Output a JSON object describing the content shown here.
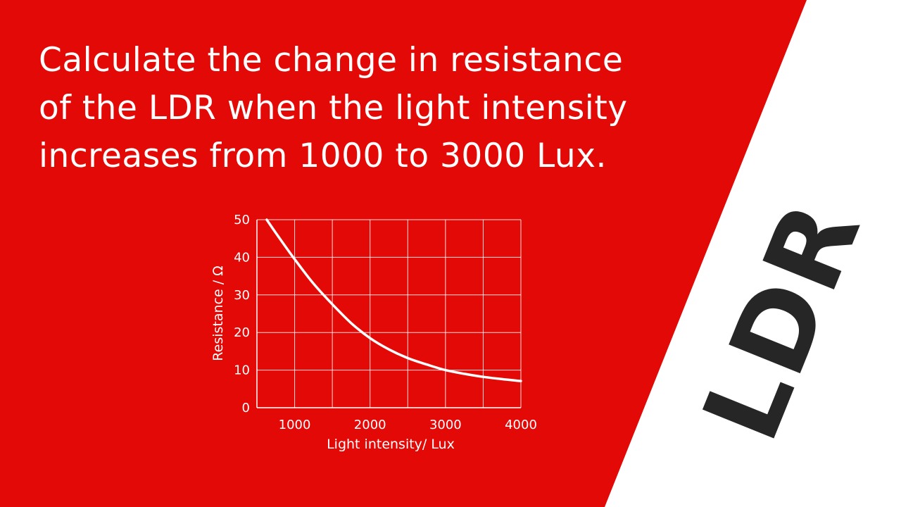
{
  "question": {
    "lines": [
      "Calculate the change in resistance",
      "of the LDR when the light intensity",
      "increases from 1000 to 3000 Lux."
    ]
  },
  "side_title": "LDR",
  "colors": {
    "background_red": "#e30907",
    "background_white": "#ffffff",
    "title_dark": "#262626",
    "chart_lines": "#ffffff"
  },
  "chart_data": {
    "type": "line",
    "title": "",
    "xlabel": "Light intensity/ Lux",
    "ylabel": "Resistance / Ω",
    "xlim": [
      500,
      4000
    ],
    "ylim": [
      0,
      50
    ],
    "x_ticks": [
      1000,
      2000,
      3000,
      4000
    ],
    "y_ticks": [
      0,
      10,
      20,
      30,
      40,
      50
    ],
    "grid": true,
    "legend": "none",
    "series": [
      {
        "values": [
          {
            "x": 630,
            "y": 50
          },
          {
            "x": 750,
            "y": 46.5
          },
          {
            "x": 1000,
            "y": 39.5
          },
          {
            "x": 1250,
            "y": 33
          },
          {
            "x": 1500,
            "y": 27.5
          },
          {
            "x": 1750,
            "y": 22.5
          },
          {
            "x": 2000,
            "y": 18.5
          },
          {
            "x": 2250,
            "y": 15.5
          },
          {
            "x": 2500,
            "y": 13.2
          },
          {
            "x": 2750,
            "y": 11.5
          },
          {
            "x": 3000,
            "y": 10
          },
          {
            "x": 3250,
            "y": 9
          },
          {
            "x": 3500,
            "y": 8.2
          },
          {
            "x": 3750,
            "y": 7.6
          },
          {
            "x": 4000,
            "y": 7.1
          }
        ]
      }
    ]
  }
}
